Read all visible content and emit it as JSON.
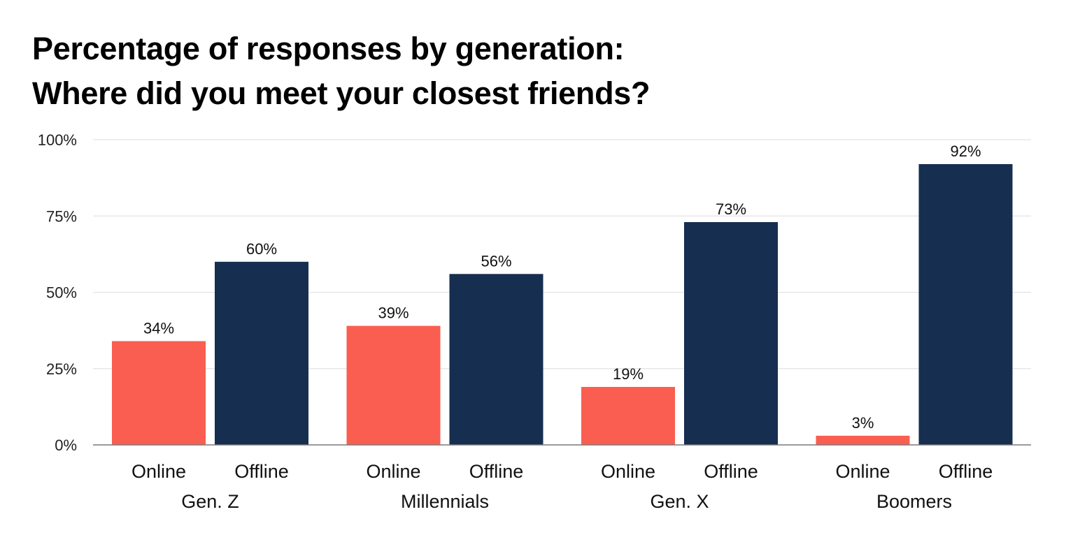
{
  "chart_data": {
    "type": "bar",
    "title": "Percentage of responses by generation:",
    "subtitle": "Where did you meet your closest friends?",
    "xlabel": "",
    "ylabel": "",
    "ylim": [
      0,
      100
    ],
    "y_ticks": [
      0,
      25,
      50,
      75,
      100
    ],
    "y_tick_labels": [
      "0%",
      "25%",
      "50%",
      "75%",
      "100%"
    ],
    "grid": true,
    "legend": "none",
    "groups": [
      "Gen. Z",
      "Millennials",
      "Gen. X",
      "Boomers"
    ],
    "sub_categories": [
      "Online",
      "Offline"
    ],
    "series": [
      {
        "values": [
          34,
          39,
          19,
          3
        ],
        "labels": [
          "34%",
          "39%",
          "19%",
          "3%"
        ],
        "color": "#fa5e50"
      },
      {
        "values": [
          60,
          56,
          73,
          92
        ],
        "labels": [
          "60%",
          "56%",
          "73%",
          "92%"
        ],
        "color": "#162e4f"
      }
    ],
    "colors": {
      "grid": "#e3e3e3",
      "axis": "#7a7a7a"
    }
  }
}
